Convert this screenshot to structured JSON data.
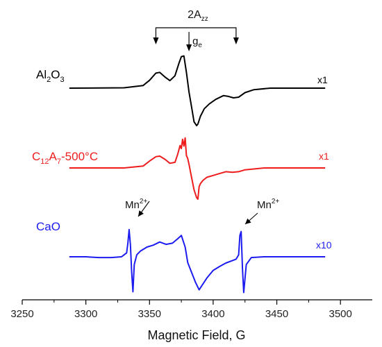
{
  "chart_data": {
    "type": "line",
    "xlabel": "Magnetic Field, G",
    "xlim": [
      3250,
      3525
    ],
    "x_ticks": [
      "3250",
      "3300",
      "3350",
      "3400",
      "3450",
      "3500"
    ],
    "grid": false,
    "legend": "none",
    "series": [
      {
        "name": "Al2O3",
        "label_parts": [
          "Al",
          "2",
          "O",
          "3"
        ],
        "scale": "x1",
        "color": "#000000",
        "x": [
          3287,
          3330,
          3345,
          3350,
          3355,
          3358,
          3362,
          3366,
          3370,
          3373,
          3375,
          3377,
          3379,
          3381,
          3383,
          3385,
          3387,
          3388,
          3390,
          3393,
          3397,
          3402,
          3408,
          3412,
          3416,
          3420,
          3425,
          3432,
          3445,
          3488
        ],
        "values": [
          0,
          0.01,
          0.07,
          0.21,
          0.4,
          0.42,
          0.3,
          0.2,
          0.33,
          0.65,
          0.84,
          0.86,
          0.42,
          -0.1,
          -0.5,
          -0.9,
          -1.0,
          -0.96,
          -0.75,
          -0.55,
          -0.42,
          -0.3,
          -0.2,
          -0.22,
          -0.26,
          -0.24,
          -0.12,
          -0.04,
          0,
          0
        ]
      },
      {
        "name": "C12A7-500°C",
        "label_parts": [
          "C",
          "12",
          "A",
          "7",
          "-500°C"
        ],
        "scale": "x1",
        "color": "#ee1c1c",
        "x": [
          3287,
          3330,
          3345,
          3350,
          3355,
          3358,
          3362,
          3366,
          3370,
          3372,
          3374,
          3375,
          3376,
          3377,
          3378,
          3379,
          3380,
          3381,
          3383,
          3385,
          3387,
          3388,
          3389,
          3390,
          3392,
          3395,
          3400,
          3405,
          3410,
          3415,
          3420,
          3425,
          3440,
          3488
        ],
        "values": [
          0,
          0,
          0.06,
          0.22,
          0.36,
          0.38,
          0.28,
          0.15,
          0.18,
          0.42,
          0.72,
          0.62,
          0.92,
          0.7,
          0.96,
          0.4,
          0.3,
          0.12,
          -0.3,
          -0.7,
          -0.95,
          -1.0,
          -0.6,
          -0.5,
          -0.4,
          -0.3,
          -0.24,
          -0.18,
          -0.12,
          -0.14,
          -0.12,
          -0.06,
          0,
          0
        ]
      },
      {
        "name": "CaO",
        "label_parts": [
          "CaO"
        ],
        "scale": "x10",
        "color": "#1c1cf0",
        "x": [
          3287,
          3300,
          3310,
          3320,
          3328,
          3330,
          3332,
          3333,
          3334,
          3335,
          3336,
          3337,
          3338,
          3340,
          3343,
          3348,
          3353,
          3358,
          3363,
          3368,
          3372,
          3375,
          3378,
          3380,
          3383,
          3386,
          3389,
          3392,
          3395,
          3400,
          3405,
          3410,
          3415,
          3418,
          3420,
          3421,
          3422,
          3423,
          3424,
          3426,
          3430,
          3440,
          3460,
          3488
        ],
        "values": [
          0,
          0,
          -0.02,
          -0.02,
          0,
          0.05,
          0.1,
          0.35,
          0.7,
          0.3,
          -0.4,
          -0.9,
          -0.2,
          0.05,
          0.15,
          0.25,
          0.3,
          0.38,
          0.32,
          0.35,
          0.46,
          0.55,
          0.25,
          -0.15,
          -0.4,
          -0.65,
          -0.85,
          -0.7,
          -0.55,
          -0.35,
          -0.25,
          -0.16,
          -0.1,
          -0.06,
          0.05,
          0.55,
          0.65,
          -0.3,
          -0.92,
          -0.2,
          -0.02,
          0,
          0,
          0
        ]
      }
    ],
    "annotations": {
      "hyperfine_label": "2A",
      "hyperfine_sub": "zz",
      "hyperfine_x": [
        3355,
        3418
      ],
      "ge_label": "g",
      "ge_sub": "e",
      "ge_x": [
        3381
      ],
      "mn_label": "Mn",
      "mn_sup": "2+"
    }
  }
}
